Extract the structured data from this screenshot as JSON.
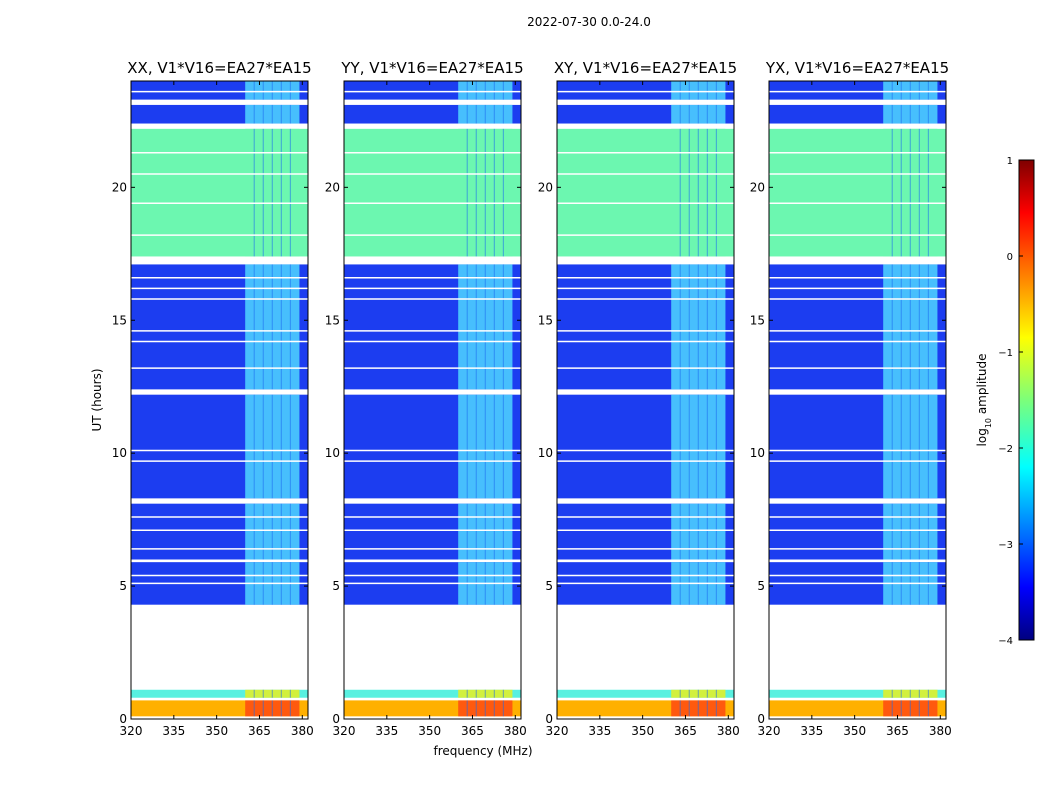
{
  "figure": {
    "suptitle": "2022-07-30 0.0-24.0",
    "ylabel": "UT (hours)",
    "xlabel": "frequency (MHz)",
    "colorbar_label_prefix": "log",
    "colorbar_label_sub": "10",
    "colorbar_label_suffix": " amplitude"
  },
  "chart_data": {
    "type": "heatmap",
    "colormap": "jet",
    "xlim": [
      320,
      382
    ],
    "ylim": [
      0,
      24
    ],
    "xticks": [
      320,
      335,
      350,
      365,
      380
    ],
    "yticks": [
      0,
      5,
      10,
      15,
      20
    ],
    "colorbar": {
      "vmin": -4,
      "vmax": 1,
      "ticks": [
        -4,
        -3,
        -2,
        -1,
        0,
        1
      ]
    },
    "panels": [
      {
        "title": "XX, V1*V16=EA27*EA15",
        "hot_band_mhz": [
          360,
          379
        ]
      },
      {
        "title": "YY, V1*V16=EA27*EA15",
        "hot_band_mhz": [
          360,
          379
        ]
      },
      {
        "title": "XY, V1*V16=EA27*EA15",
        "hot_band_mhz": [
          360,
          379
        ]
      },
      {
        "title": "YX, V1*V16=EA27*EA15",
        "hot_band_mhz": [
          360,
          379
        ]
      }
    ],
    "time_blocks": [
      {
        "t0": 0.1,
        "t1": 0.7,
        "level": "hot"
      },
      {
        "t0": 0.8,
        "t1": 1.1,
        "level": "high"
      },
      {
        "t0": 4.3,
        "t1": 5.9,
        "level": "low"
      },
      {
        "t0": 6.0,
        "t1": 8.1,
        "level": "low"
      },
      {
        "t0": 8.3,
        "t1": 12.2,
        "level": "low"
      },
      {
        "t0": 12.4,
        "t1": 17.1,
        "level": "low"
      },
      {
        "t0": 17.4,
        "t1": 22.2,
        "level": "mid"
      },
      {
        "t0": 22.4,
        "t1": 23.1,
        "level": "low"
      },
      {
        "t0": 23.3,
        "t1": 24.0,
        "level": "low"
      }
    ],
    "flag_lines_hours": [
      5.1,
      5.4,
      6.4,
      7.1,
      7.6,
      9.7,
      10.1,
      13.2,
      14.2,
      14.6,
      15.8,
      16.2,
      16.6,
      18.2,
      19.4,
      20.5,
      21.3,
      23.6
    ]
  }
}
